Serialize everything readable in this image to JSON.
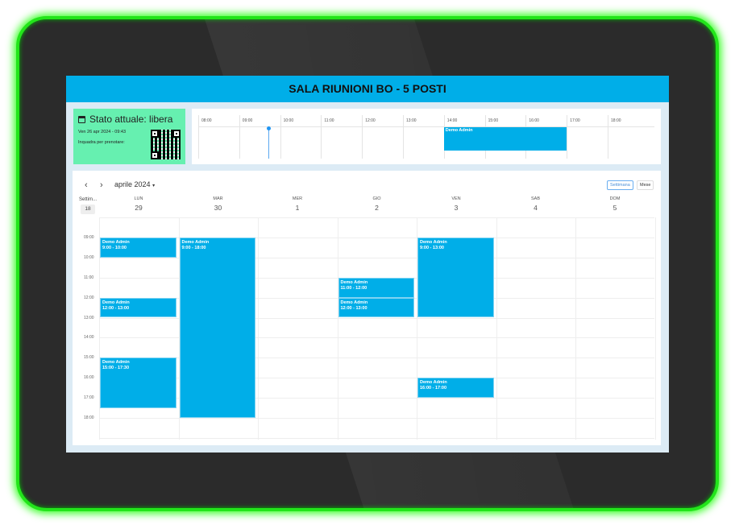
{
  "header": {
    "title": "SALA RIUNIONI BO - 5 POSTI"
  },
  "status": {
    "title": "Stato attuale: libera",
    "datetime": "Ven 26 apr 2024 - 09:43",
    "scan_prompt": "Inquadra per prenotare:",
    "color": "#66f0b0"
  },
  "timeline": {
    "hours": [
      "08:00",
      "09:00",
      "10:00",
      "11:00",
      "12:00",
      "13:00",
      "14:00",
      "15:00",
      "16:00",
      "17:00",
      "18:00"
    ],
    "now": "09:43",
    "events": [
      {
        "title": "Demo Admin",
        "start": 14,
        "end": 17
      }
    ]
  },
  "calendar": {
    "month_label": "aprile 2024",
    "prev_icon": "chevron-left-icon",
    "next_icon": "chevron-right-icon",
    "views": {
      "week": "Settimana",
      "month": "Mese",
      "active": "week"
    },
    "week_label": "Settim...",
    "week_number": "18",
    "days": [
      {
        "name": "LUN",
        "num": "29"
      },
      {
        "name": "MAR",
        "num": "30"
      },
      {
        "name": "MER",
        "num": "1"
      },
      {
        "name": "GIO",
        "num": "2"
      },
      {
        "name": "VEN",
        "num": "3"
      },
      {
        "name": "SAB",
        "num": "4"
      },
      {
        "name": "DOM",
        "num": "5"
      }
    ],
    "hours": [
      "09:00",
      "10:00",
      "11:00",
      "12:00",
      "13:00",
      "14:00",
      "15:00",
      "16:00",
      "17:00",
      "18:00"
    ],
    "events": [
      {
        "day": 0,
        "start": 9,
        "end": 10,
        "title": "Demo Admin",
        "time": "9:00 - 10:00"
      },
      {
        "day": 0,
        "start": 12,
        "end": 13,
        "title": "Demo Admin",
        "time": "12:00 - 13:00"
      },
      {
        "day": 0,
        "start": 15,
        "end": 17.5,
        "title": "Demo Admin",
        "time": "15:00 - 17:30"
      },
      {
        "day": 1,
        "start": 9,
        "end": 18,
        "title": "Demo Admin",
        "time": "9:00 - 18:00"
      },
      {
        "day": 3,
        "start": 11,
        "end": 12,
        "title": "Demo Admin",
        "time": "11:00 - 12:00"
      },
      {
        "day": 3,
        "start": 12,
        "end": 13,
        "title": "Demo Admin",
        "time": "12:00 - 13:00"
      },
      {
        "day": 4,
        "start": 9,
        "end": 13,
        "title": "Demo Admin",
        "time": "9:00 - 13:00"
      },
      {
        "day": 4,
        "start": 16,
        "end": 17,
        "title": "Demo Admin",
        "time": "16:00 - 17:00"
      }
    ]
  },
  "colors": {
    "accent": "#00aee8",
    "bezel_glow": "#22e51a"
  }
}
